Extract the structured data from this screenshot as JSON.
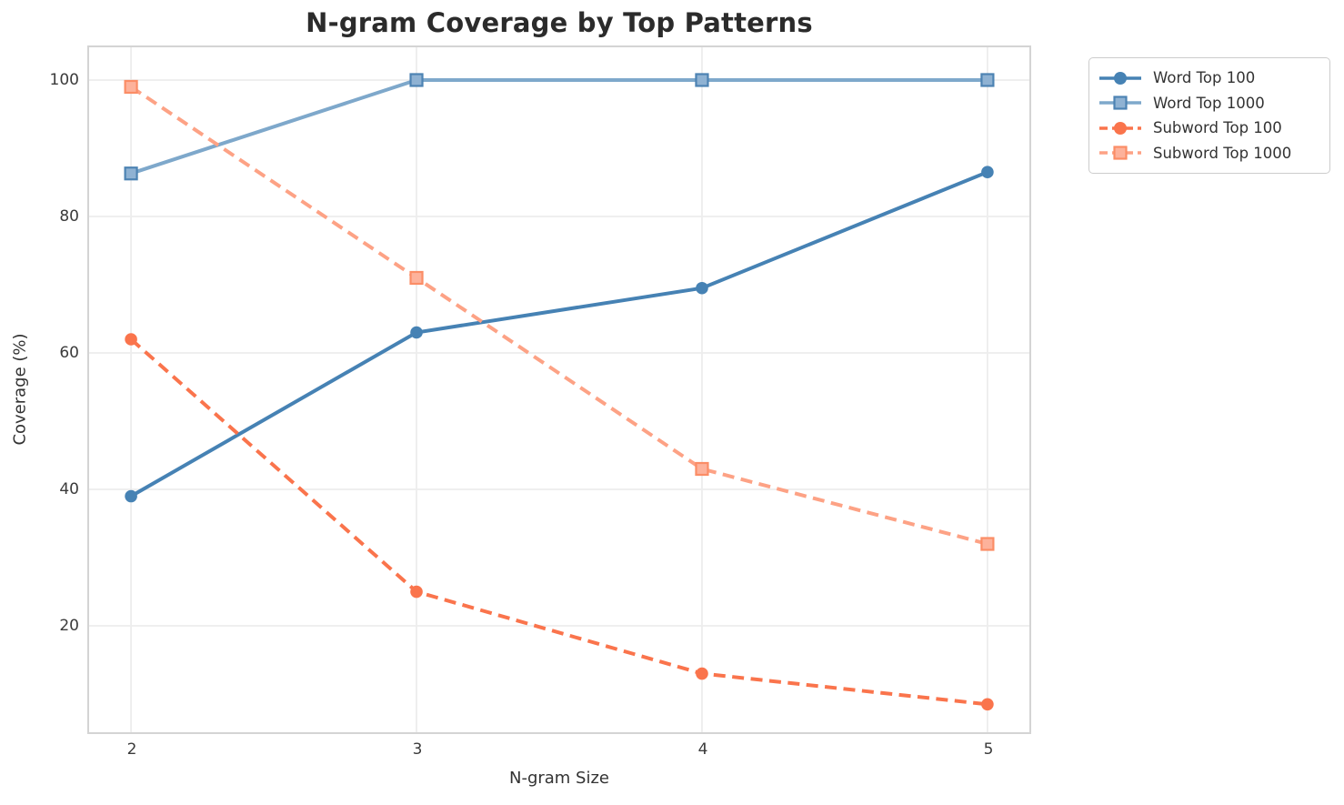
{
  "title": "N-gram Coverage by Top Patterns",
  "chart_data": {
    "type": "line",
    "title": "N-gram Coverage by Top Patterns",
    "xlabel": "N-gram Size",
    "ylabel": "Coverage (%)",
    "x": [
      2,
      3,
      4,
      5
    ],
    "xticks": [
      "2",
      "3",
      "4",
      "5"
    ],
    "yticks": [
      "20",
      "40",
      "60",
      "80",
      "100"
    ],
    "ytick_values": [
      20,
      40,
      60,
      80,
      100
    ],
    "xlim": [
      1.85,
      5.15
    ],
    "ylim": [
      4.27,
      104.93
    ],
    "grid": true,
    "legend_position": "outside-upper-right",
    "series": [
      {
        "name": "Word Top 100",
        "values": [
          39,
          63,
          69.5,
          86.5
        ],
        "color": "#4682b4",
        "marker": "circle",
        "line_style": "solid"
      },
      {
        "name": "Word Top 1000",
        "values": [
          86.3,
          100,
          100,
          100
        ],
        "color": "#7ea8cb",
        "marker": "square",
        "marker_fill": "#8fb2d3",
        "marker_edge": "#4d83b3",
        "line_style": "solid"
      },
      {
        "name": "Subword Top 100",
        "values": [
          62,
          25,
          13,
          8.5
        ],
        "color": "#fa744c",
        "marker": "circle",
        "line_style": "dashed"
      },
      {
        "name": "Subword Top 1000",
        "values": [
          99,
          71,
          43,
          32
        ],
        "color": "#fda285",
        "marker": "square",
        "marker_fill": "#fdb29b",
        "marker_edge": "#fb8d66",
        "line_style": "dashed"
      }
    ],
    "style": {
      "grid_color": "#ededed",
      "frame_color": "#d4d4d4",
      "title_color": "#2b2b2b",
      "tick_color": "#3b3b3b",
      "label_color": "#333333",
      "background": "#ffffff"
    }
  }
}
